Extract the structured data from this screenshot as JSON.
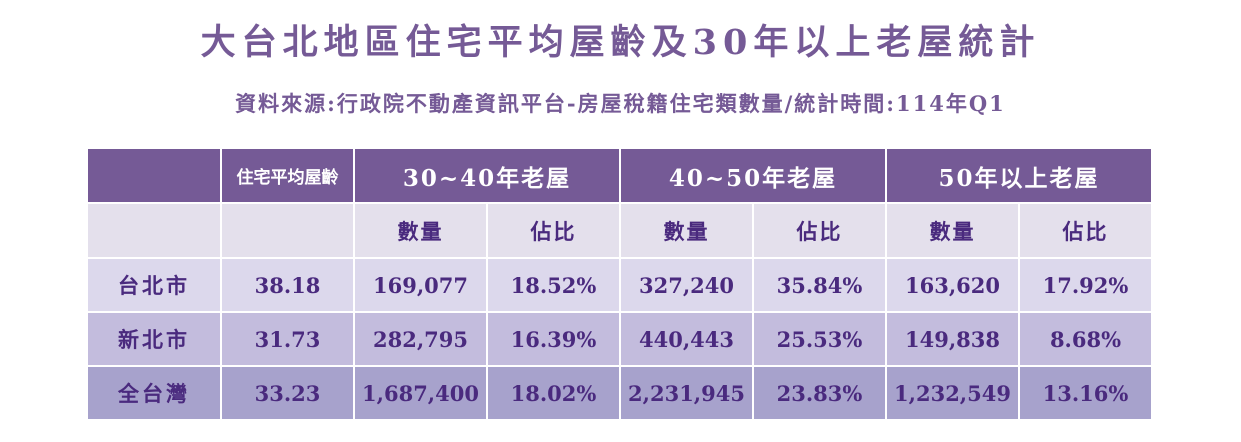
{
  "title": "大台北地區住宅平均屋齡及30年以上老屋統計",
  "subtitle": "資料來源:行政院不動產資訊平台-房屋稅籍住宅類數量/統計時間:114年Q1",
  "colors": {
    "header_bg": "#755a96",
    "subheader_bg": "#e4e0ec",
    "row_taipei_bg": "#dcd8ec",
    "row_newtaipei_bg": "#c3bcdd",
    "row_taiwan_bg": "#a7a2cc",
    "text": "#4a2a7e"
  },
  "table": {
    "header": {
      "blank": "",
      "avg_age": "住宅平均屋齡",
      "groups": [
        "30~40年老屋",
        "40~50年老屋",
        "50年以上老屋"
      ]
    },
    "subheader": {
      "count": "數量",
      "ratio": "佔比"
    },
    "rows": [
      {
        "region": "台北市",
        "avg_age": "38.18",
        "g1_count": "169,077",
        "g1_ratio": "18.52%",
        "g2_count": "327,240",
        "g2_ratio": "35.84%",
        "g3_count": "163,620",
        "g3_ratio": "17.92%"
      },
      {
        "region": "新北市",
        "avg_age": "31.73",
        "g1_count": "282,795",
        "g1_ratio": "16.39%",
        "g2_count": "440,443",
        "g2_ratio": "25.53%",
        "g3_count": "149,838",
        "g3_ratio": "8.68%"
      },
      {
        "region": "全台灣",
        "avg_age": "33.23",
        "g1_count": "1,687,400",
        "g1_ratio": "18.02%",
        "g2_count": "2,231,945",
        "g2_ratio": "23.83%",
        "g3_count": "1,232,549",
        "g3_ratio": "13.16%"
      }
    ]
  }
}
